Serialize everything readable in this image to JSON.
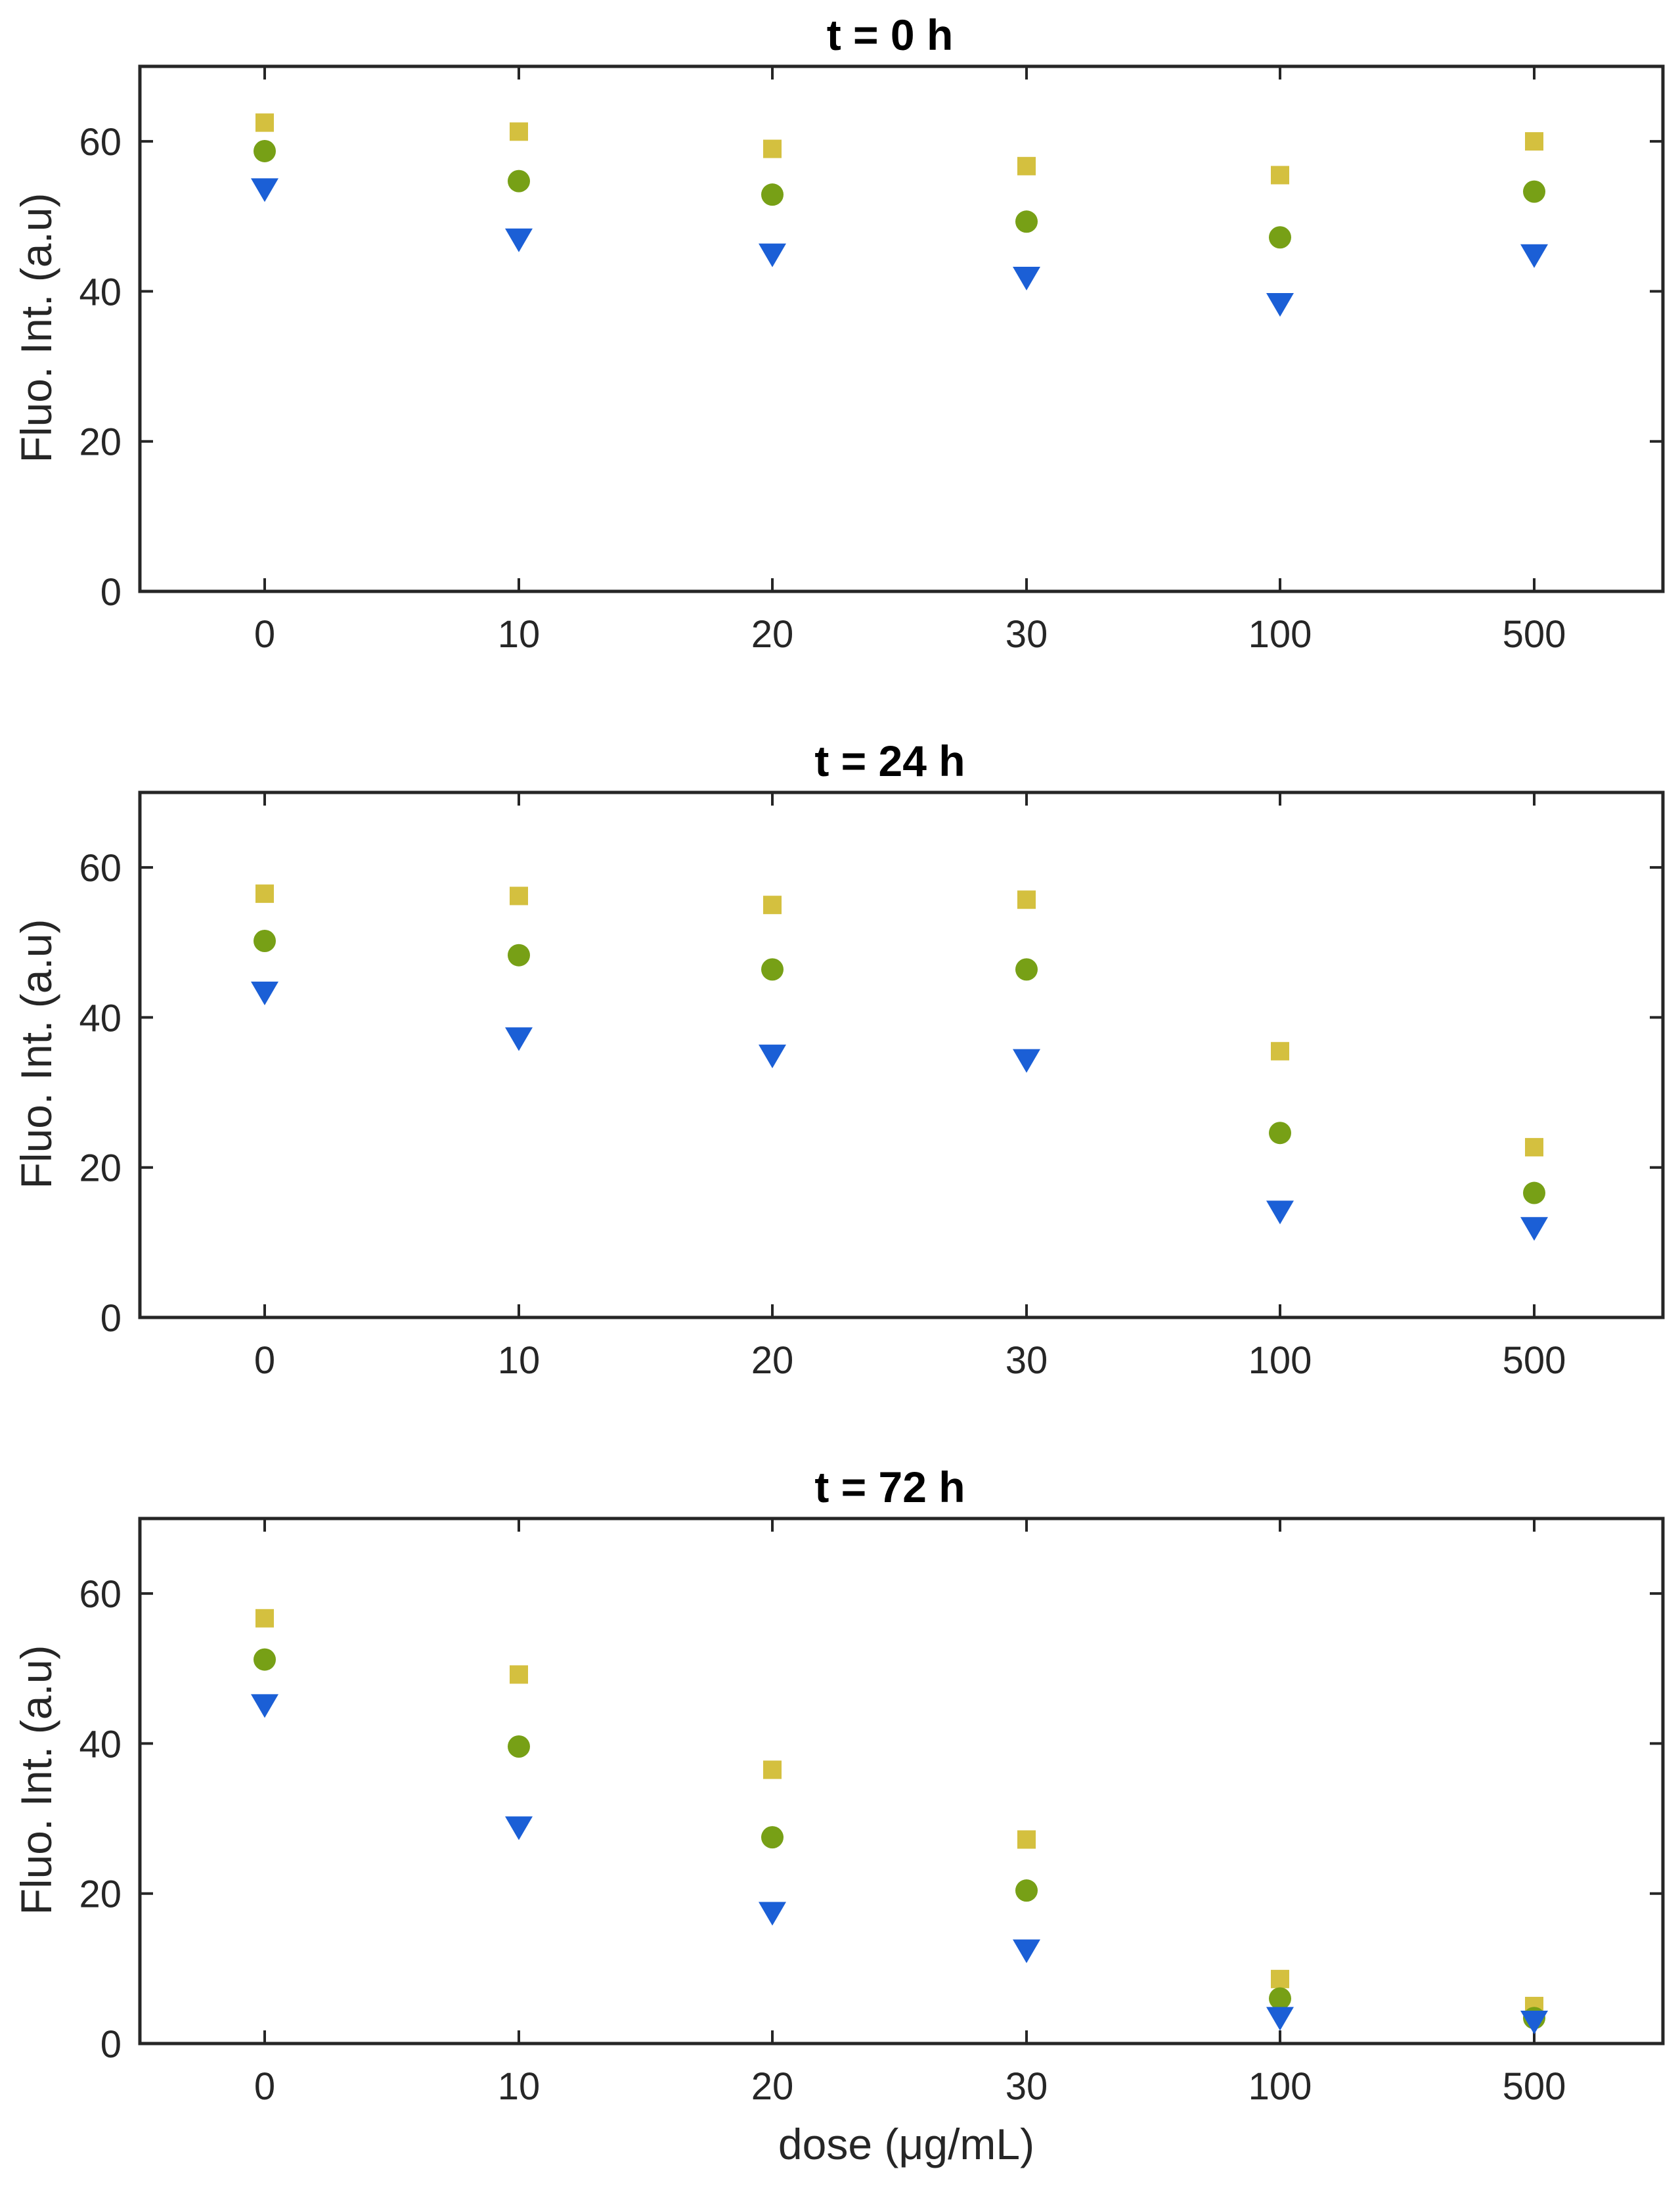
{
  "colors": {
    "series_square": "#d4c03f",
    "series_circle": "#77a016",
    "series_triangle": "#1b5fd6",
    "axis": "#262626",
    "background": "#ffffff"
  },
  "chart_data": [
    {
      "type": "scatter",
      "title": "t = 0 h",
      "xlabel": "",
      "ylabel": "Fluo. Int. (a.u)",
      "categories": [
        "0",
        "10",
        "20",
        "30",
        "100",
        "500"
      ],
      "ylim": [
        0,
        70
      ],
      "yticks": [
        "0",
        "20",
        "40",
        "60"
      ],
      "grid": false,
      "series": [
        {
          "name": "square",
          "marker": "square",
          "values": [
            62.5,
            61.3,
            59.0,
            56.7,
            55.5,
            60.0
          ]
        },
        {
          "name": "circle",
          "marker": "circle",
          "values": [
            58.7,
            54.7,
            52.9,
            49.3,
            47.2,
            53.3
          ]
        },
        {
          "name": "triangle",
          "marker": "triangle-down",
          "values": [
            53.5,
            46.8,
            44.8,
            41.7,
            38.2,
            44.7
          ]
        }
      ]
    },
    {
      "type": "scatter",
      "title": "t = 24 h",
      "xlabel": "",
      "ylabel": "Fluo. Int. (a.u)",
      "categories": [
        "0",
        "10",
        "20",
        "30",
        "100",
        "500"
      ],
      "ylim": [
        0,
        70
      ],
      "yticks": [
        "0",
        "20",
        "40",
        "60"
      ],
      "grid": false,
      "series": [
        {
          "name": "square",
          "marker": "square",
          "values": [
            56.5,
            56.2,
            55.0,
            55.7,
            35.5,
            22.7
          ]
        },
        {
          "name": "circle",
          "marker": "circle",
          "values": [
            50.2,
            48.3,
            46.4,
            46.4,
            24.6,
            16.6
          ]
        },
        {
          "name": "triangle",
          "marker": "triangle-down",
          "values": [
            43.2,
            37.1,
            34.8,
            34.2,
            14.0,
            11.8
          ]
        }
      ]
    },
    {
      "type": "scatter",
      "title": "t = 72 h",
      "xlabel": "dose (μg/mL)",
      "ylabel": "Fluo. Int. (a.u)",
      "categories": [
        "0",
        "10",
        "20",
        "30",
        "100",
        "500"
      ],
      "ylim": [
        0,
        70
      ],
      "yticks": [
        "0",
        "20",
        "40",
        "60"
      ],
      "grid": false,
      "series": [
        {
          "name": "square",
          "marker": "square",
          "values": [
            56.7,
            49.2,
            36.5,
            27.2,
            8.6,
            5.0
          ]
        },
        {
          "name": "circle",
          "marker": "circle",
          "values": [
            51.2,
            39.6,
            27.5,
            20.4,
            6.0,
            3.4
          ]
        },
        {
          "name": "triangle",
          "marker": "triangle-down",
          "values": [
            45.0,
            28.7,
            17.3,
            12.3,
            3.3,
            2.8
          ]
        }
      ]
    }
  ]
}
